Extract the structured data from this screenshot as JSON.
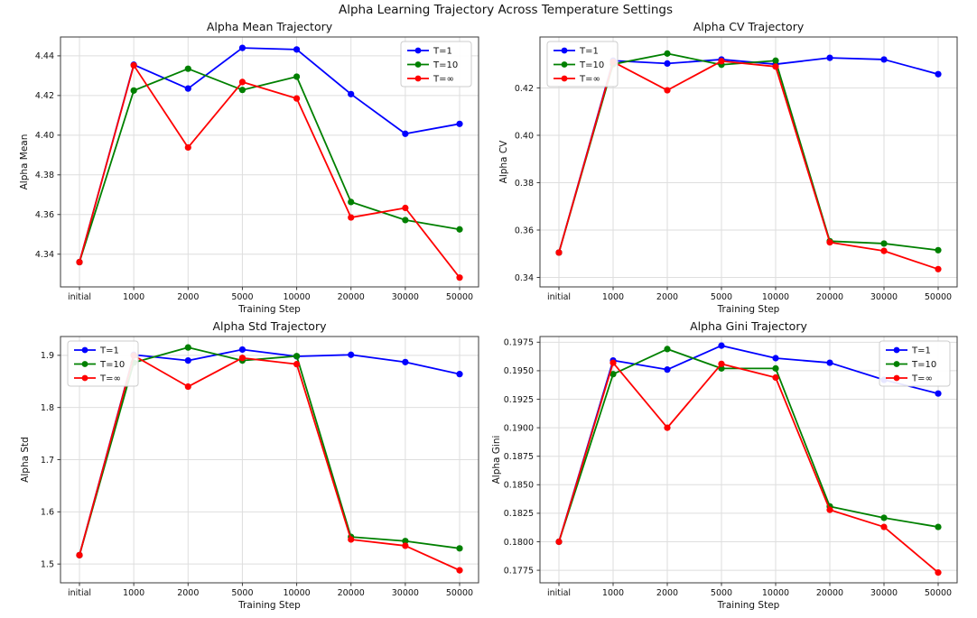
{
  "figure_title": "Alpha Learning Trajectory Across Temperature Settings",
  "categories": [
    "initial",
    "1000",
    "2000",
    "5000",
    "10000",
    "20000",
    "30000",
    "50000"
  ],
  "palette": {
    "t1": "#0000ff",
    "t10": "#008000",
    "tinf": "#ff0000"
  },
  "style": {
    "grid_color": "#dedede",
    "spine_color": "#3a3a3a",
    "text_color": "#111111",
    "legend_border": "#cccccc",
    "background": "#ffffff"
  },
  "chart_data": [
    {
      "type": "line",
      "title": "Alpha Mean Trajectory",
      "xlabel": "Training Step",
      "ylabel": "Alpha Mean",
      "ylim": [
        4.3235,
        4.4495
      ],
      "yticks": [
        4.34,
        4.36,
        4.38,
        4.4,
        4.42,
        4.44
      ],
      "ytick_decimals": 2,
      "grid": true,
      "legend_position": "upper right",
      "series": [
        {
          "name": "T=1",
          "color": "#0000ff",
          "values": [
            4.336,
            4.4355,
            4.4235,
            4.444,
            4.4432,
            4.4207,
            4.4007,
            4.4057
          ]
        },
        {
          "name": "T=10",
          "color": "#008000",
          "values": [
            4.336,
            4.4225,
            4.4335,
            4.4228,
            4.4295,
            4.3663,
            4.3572,
            4.3525
          ]
        },
        {
          "name": "T=∞",
          "color": "#ff0000",
          "values": [
            4.336,
            4.4352,
            4.3938,
            4.4268,
            4.4185,
            4.3585,
            4.3633,
            4.3282
          ]
        }
      ]
    },
    {
      "type": "line",
      "title": "Alpha CV Trajectory",
      "xlabel": "Training Step",
      "ylabel": "Alpha CV",
      "ylim": [
        0.336,
        0.4415
      ],
      "yticks": [
        0.34,
        0.36,
        0.38,
        0.4,
        0.42
      ],
      "ytick_decimals": 2,
      "grid": true,
      "legend_position": "upper left",
      "series": [
        {
          "name": "T=1",
          "color": "#0000ff",
          "values": [
            0.3505,
            0.4315,
            0.4303,
            0.432,
            0.43,
            0.4327,
            0.432,
            0.4258
          ]
        },
        {
          "name": "T=10",
          "color": "#008000",
          "values": [
            0.3505,
            0.43,
            0.4345,
            0.4298,
            0.4315,
            0.3553,
            0.3543,
            0.3515
          ]
        },
        {
          "name": "T=∞",
          "color": "#ff0000",
          "values": [
            0.3505,
            0.431,
            0.419,
            0.4313,
            0.429,
            0.3548,
            0.3512,
            0.3435
          ]
        }
      ]
    },
    {
      "type": "line",
      "title": "Alpha Std Trajectory",
      "xlabel": "Training Step",
      "ylabel": "Alpha Std",
      "ylim": [
        1.464,
        1.936
      ],
      "yticks": [
        1.5,
        1.6,
        1.7,
        1.8,
        1.9
      ],
      "ytick_decimals": 1,
      "grid": true,
      "legend_position": "upper left",
      "series": [
        {
          "name": "T=1",
          "color": "#0000ff",
          "values": [
            1.517,
            1.901,
            1.89,
            1.911,
            1.898,
            1.901,
            1.887,
            1.864
          ]
        },
        {
          "name": "T=10",
          "color": "#008000",
          "values": [
            1.517,
            1.886,
            1.915,
            1.89,
            1.8985,
            1.552,
            1.544,
            1.53
          ]
        },
        {
          "name": "T=∞",
          "color": "#ff0000",
          "values": [
            1.517,
            1.8995,
            1.84,
            1.895,
            1.883,
            1.547,
            1.535,
            1.488
          ]
        }
      ]
    },
    {
      "type": "line",
      "title": "Alpha Gini Trajectory",
      "xlabel": "Training Step",
      "ylabel": "Alpha Gini",
      "ylim": [
        0.1764,
        0.198
      ],
      "yticks": [
        0.1775,
        0.18,
        0.1825,
        0.185,
        0.1875,
        0.19,
        0.1925,
        0.195,
        0.1975
      ],
      "ytick_decimals": 4,
      "grid": true,
      "legend_position": "upper right",
      "series": [
        {
          "name": "T=1",
          "color": "#0000ff",
          "values": [
            0.18,
            0.1959,
            0.1951,
            0.1972,
            0.1961,
            0.1957,
            0.1942,
            0.193
          ]
        },
        {
          "name": "T=10",
          "color": "#008000",
          "values": [
            0.18,
            0.1947,
            0.1969,
            0.1952,
            0.1952,
            0.1831,
            0.1821,
            0.1813
          ]
        },
        {
          "name": "T=∞",
          "color": "#ff0000",
          "values": [
            0.18,
            0.1957,
            0.19,
            0.1956,
            0.1944,
            0.1828,
            0.1813,
            0.1773
          ]
        }
      ]
    }
  ]
}
